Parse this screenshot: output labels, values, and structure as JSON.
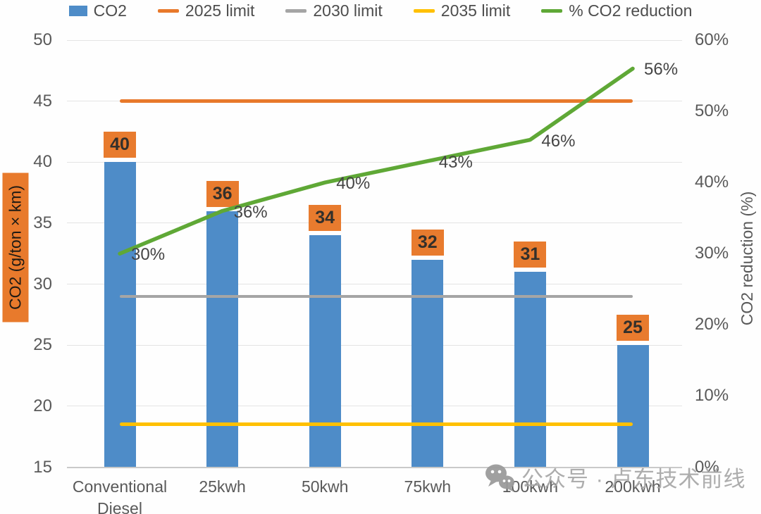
{
  "chart_data": {
    "type": "bar",
    "combo": "bar + line, dual axis",
    "categories": [
      "Conventional Diesel",
      "25kwh",
      "50kwh",
      "75kwh",
      "100kwh",
      "200kwh"
    ],
    "series": [
      {
        "name": "CO2",
        "type": "bar",
        "axis": "left",
        "values": [
          40,
          36,
          34,
          32,
          31,
          25
        ],
        "color": "#4E8CC8",
        "label_bg": "#E87B2E",
        "label_color": "#33302B"
      },
      {
        "name": "2025 limit",
        "type": "line",
        "axis": "left",
        "values": [
          45,
          45,
          45,
          45,
          45,
          45
        ],
        "color": "#E8792B"
      },
      {
        "name": "2030 limit",
        "type": "line",
        "axis": "left",
        "values": [
          29,
          29,
          29,
          29,
          29,
          29
        ],
        "color": "#A5A5A5"
      },
      {
        "name": "2035 limit",
        "type": "line",
        "axis": "left",
        "values": [
          18.5,
          18.5,
          18.5,
          18.5,
          18.5,
          18.5
        ],
        "color": "#FFC000"
      },
      {
        "name": "% CO2 reduction",
        "type": "line",
        "axis": "right",
        "values": [
          30,
          36,
          40,
          43,
          46,
          56
        ],
        "point_labels": [
          "30%",
          "36%",
          "40%",
          "43%",
          "46%",
          "56%"
        ],
        "color": "#5FA836"
      }
    ],
    "left_axis": {
      "title": "CO2 (g/ton × km)",
      "title_bg": "#E87A2C",
      "min": 15,
      "max": 50,
      "step": 5,
      "ticks": [
        "50",
        "45",
        "40",
        "35",
        "30",
        "25",
        "20",
        "15"
      ]
    },
    "right_axis": {
      "title": "CO2 reduction (%)",
      "min": 0,
      "max": 60,
      "step": 10,
      "ticks": [
        "60%",
        "50%",
        "40%",
        "30%",
        "20%",
        "10%",
        "0%"
      ]
    },
    "legend_position": "top",
    "grid": true
  },
  "watermark": {
    "icon": "wechat-icon",
    "text": "公众号 · 卢东技术前线"
  }
}
